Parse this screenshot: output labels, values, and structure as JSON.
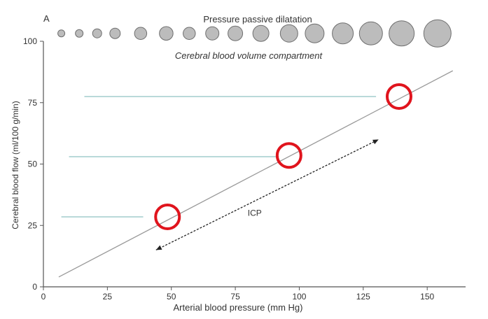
{
  "chart_data": {
    "type": "line",
    "panel_label": "A",
    "top_label": "Pressure passive dilatation",
    "compartment_label": "Cerebral blood volume compartment",
    "xlabel": "Arterial blood pressure (mm Hg)",
    "ylabel": "Cerebral blood flow (ml/100 g/min)",
    "xlim": [
      0,
      165
    ],
    "ylim": [
      0,
      100
    ],
    "x_ticks": [
      0,
      25,
      50,
      75,
      100,
      125,
      150
    ],
    "y_ticks": [
      0,
      25,
      50,
      75,
      100
    ],
    "x_tick_labels": [
      "0",
      "25",
      "50",
      "75",
      "100",
      "125",
      "150"
    ],
    "y_tick_labels": [
      "0",
      "25",
      "50",
      "75",
      "100"
    ],
    "grid": false,
    "line": {
      "x": [
        6,
        160
      ],
      "y": [
        4,
        88
      ],
      "color": "#9a9a9a"
    },
    "reference_lines": [
      {
        "x": [
          7,
          39
        ],
        "y": 28.5
      },
      {
        "x": [
          10,
          92
        ],
        "y": 53
      },
      {
        "x": [
          16,
          130
        ],
        "y": 77.5
      }
    ],
    "reference_line_color": "#8fc2c2",
    "highlight_points": [
      {
        "x": 48.5,
        "y": 28.5
      },
      {
        "x": 96,
        "y": 53.5
      },
      {
        "x": 139,
        "y": 77.5
      }
    ],
    "highlight_color": "#e0141d",
    "arrow": {
      "from": {
        "x": 44,
        "y": 15
      },
      "to": {
        "x": 131,
        "y": 60
      },
      "label": "ICP"
    },
    "volume_circles": {
      "y": 101.5,
      "x": [
        7,
        14,
        21,
        28,
        38,
        48,
        57,
        66,
        75,
        85,
        96,
        106,
        117,
        128,
        140,
        154
      ],
      "relative_size": [
        1,
        1.1,
        1.3,
        1.5,
        1.75,
        1.95,
        1.75,
        1.9,
        2.1,
        2.3,
        2.5,
        2.7,
        3.0,
        3.3,
        3.6,
        3.9
      ],
      "fill": "#bcbcbc",
      "stroke": "#6e6e6e"
    }
  }
}
